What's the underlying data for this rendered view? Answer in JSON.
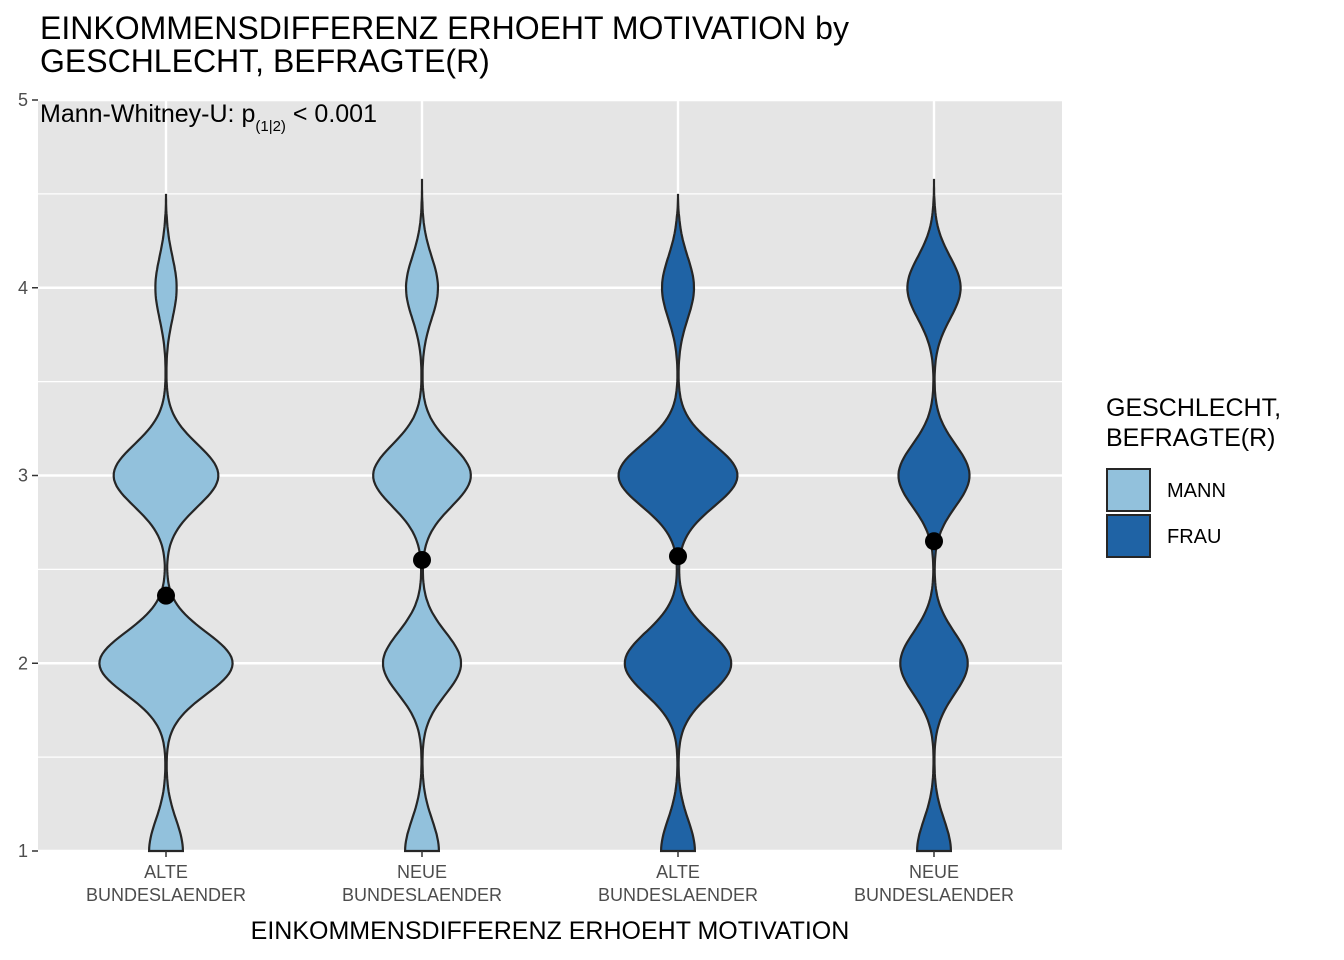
{
  "chart_data": {
    "type": "violin",
    "title_lines": [
      "EINKOMMENSDIFFERENZ ERHOEHT MOTIVATION by",
      "GESCHLECHT, BEFRAGTE(R)"
    ],
    "subtitle": {
      "prefix": "Mann-Whitney-U:  p",
      "subscript": "(1|2)",
      "suffix": " < 0.001"
    },
    "xlabel": "EINKOMMENSDIFFERENZ ERHOEHT MOTIVATION",
    "ylabel": "",
    "ylim": [
      1,
      5
    ],
    "yticks": [
      "1",
      "2",
      "3",
      "4",
      "5"
    ],
    "grid": true,
    "legend": {
      "title_lines": [
        "GESCHLECHT,",
        "BEFRAGTE(R)"
      ],
      "position": "right",
      "items": [
        {
          "label": "MANN",
          "color": "#92c1dc"
        },
        {
          "label": "FRAU",
          "color": "#1f63a5"
        }
      ]
    },
    "categories": [
      {
        "label_lines": [
          "ALTE",
          "BUNDESLAENDER"
        ],
        "group": "MANN",
        "mean": 2.36,
        "max": 4.5,
        "widths": {
          "1": 0.19,
          "2": 0.75,
          "3": 0.59,
          "4": 0.12
        }
      },
      {
        "label_lines": [
          "NEUE",
          "BUNDESLAENDER"
        ],
        "group": "MANN",
        "mean": 2.55,
        "max": 4.58,
        "widths": {
          "1": 0.19,
          "2": 0.44,
          "3": 0.55,
          "4": 0.18
        }
      },
      {
        "label_lines": [
          "ALTE",
          "BUNDESLAENDER"
        ],
        "group": "FRAU",
        "mean": 2.57,
        "max": 4.5,
        "widths": {
          "1": 0.19,
          "2": 0.6,
          "3": 0.67,
          "4": 0.18
        }
      },
      {
        "label_lines": [
          "NEUE",
          "BUNDESLAENDER"
        ],
        "group": "FRAU",
        "mean": 2.65,
        "max": 4.58,
        "widths": {
          "1": 0.19,
          "2": 0.38,
          "3": 0.4,
          "4": 0.3
        }
      }
    ]
  }
}
